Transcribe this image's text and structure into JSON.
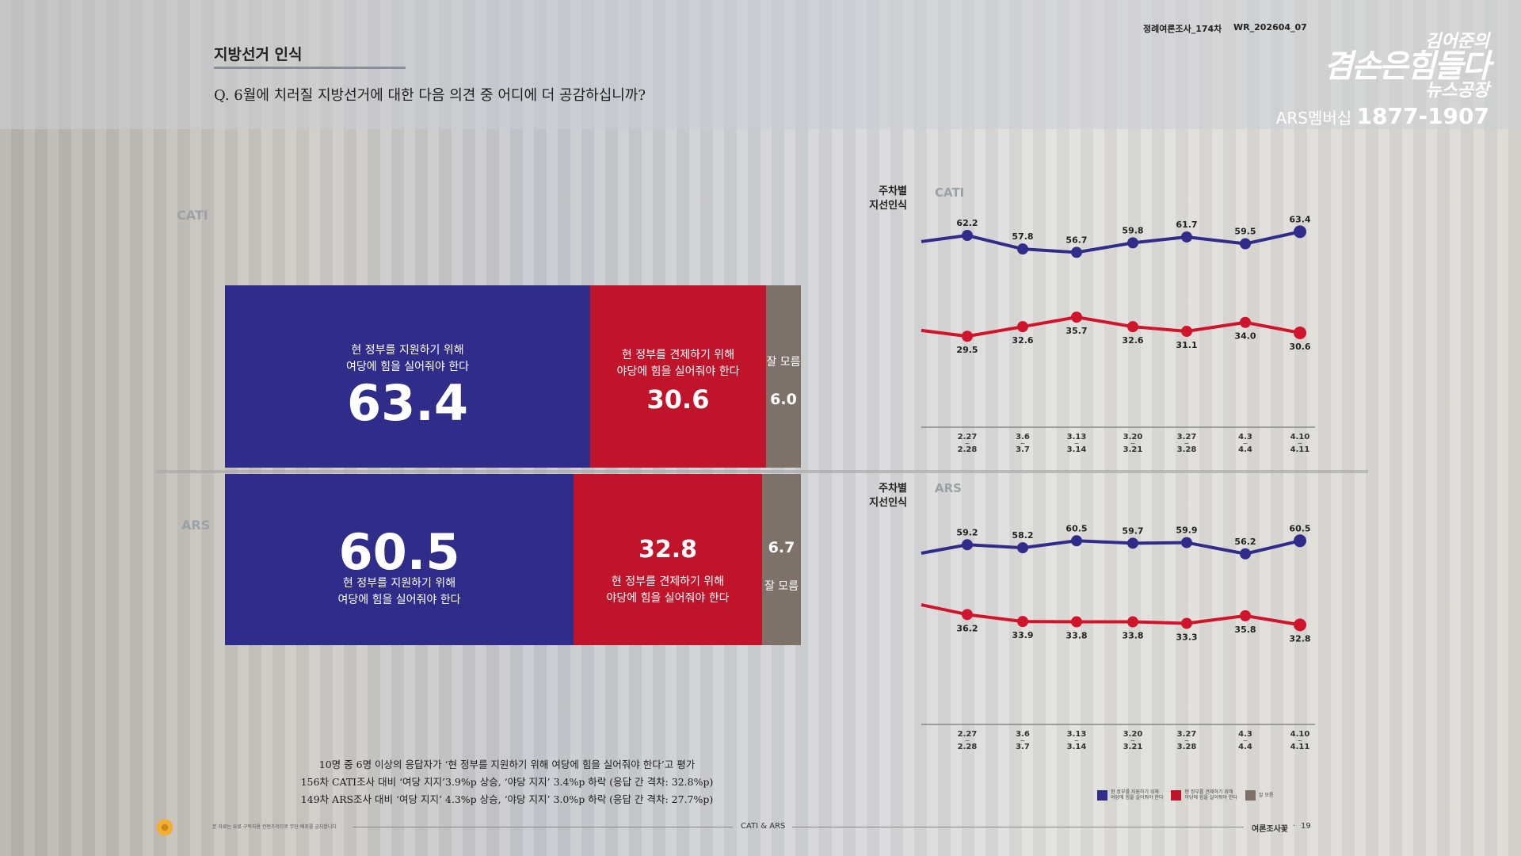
{
  "header": {
    "title": "지방선거 인식",
    "question": "Q. 6월에 치러질 지방선거에 대한 다음 의견 중 어디에 더 공감하십니까?",
    "survey_round": "정례여론조사_174차",
    "report_code": "WR_202604_07"
  },
  "logo": {
    "line1": "김어준의",
    "line2": "겸손은힘들다",
    "line3": "뉴스공장",
    "membership": "ARS멤버십",
    "phone": "1877-1907"
  },
  "stacked": {
    "cati": {
      "label": "CATI",
      "support": {
        "text1": "현 정부를 지원하기 위해",
        "text2": "여당에 힘을 실어줘야 한다",
        "value": "63.4"
      },
      "check": {
        "text1": "현 정부를 견제하기 위해",
        "text2": "야당에 힘을 실어줘야 한다",
        "value": "30.6"
      },
      "unknown": {
        "text": "잘 모름",
        "value": "6.0"
      }
    },
    "ars": {
      "label": "ARS",
      "support": {
        "text1": "현 정부를 지원하기 위해",
        "text2": "여당에 힘을 실어줘야 한다",
        "value": "60.5"
      },
      "check": {
        "text1": "현 정부를 견제하기 위해",
        "text2": "야당에 힘을 실어줘야 한다",
        "value": "32.8"
      },
      "unknown": {
        "text": "잘 모름",
        "value": "6.7"
      }
    }
  },
  "chart_data": [
    {
      "type": "line",
      "title": "주차별 지선인식",
      "panel": "CATI",
      "categories": [
        [
          "2.27",
          "2.28"
        ],
        [
          "3.6",
          "3.7"
        ],
        [
          "3.13",
          "3.14"
        ],
        [
          "3.20",
          "3.21"
        ],
        [
          "3.27",
          "3.28"
        ],
        [
          "4.3",
          "4.4"
        ],
        [
          "4.10",
          "4.11"
        ]
      ],
      "series": [
        {
          "name": "현 정부를 지원하기 위해 여당에 힘을 실어줘야 한다",
          "color": "#2f2c8a",
          "lead_in": 60.2,
          "values": [
            62.2,
            57.8,
            56.7,
            59.8,
            61.7,
            59.5,
            63.4
          ]
        },
        {
          "name": "현 정부를 견제하기 위해 야당에 힘을 실어줘야 한다",
          "color": "#d0142b",
          "lead_in": 31.4,
          "values": [
            29.5,
            32.6,
            35.7,
            32.6,
            31.1,
            34.0,
            30.6
          ]
        }
      ],
      "ylim": [
        0,
        100
      ]
    },
    {
      "type": "line",
      "title": "주차별 지선인식",
      "panel": "ARS",
      "categories": [
        [
          "2.27",
          "2.28"
        ],
        [
          "3.6",
          "3.7"
        ],
        [
          "3.13",
          "3.14"
        ],
        [
          "3.20",
          "3.21"
        ],
        [
          "3.27",
          "3.28"
        ],
        [
          "4.3",
          "4.4"
        ],
        [
          "4.10",
          "4.11"
        ]
      ],
      "series": [
        {
          "name": "현 정부를 지원하기 위해 여당에 힘을 실어줘야 한다",
          "color": "#2f2c8a",
          "lead_in": 56.4,
          "values": [
            59.2,
            58.2,
            60.5,
            59.7,
            59.9,
            56.2,
            60.5
          ]
        },
        {
          "name": "현 정부를 견제하기 위해 야당에 힘을 실어줘야 한다",
          "color": "#d0142b",
          "lead_in": 39.4,
          "values": [
            36.2,
            33.9,
            33.8,
            33.8,
            33.3,
            35.8,
            32.8
          ]
        }
      ],
      "ylim": [
        0,
        100
      ]
    }
  ],
  "chart_titles": {
    "line1": "주차별",
    "line2": "지선인식"
  },
  "legend": [
    {
      "text1": "현 정부를 지원하기 위해",
      "text2": "여당에 힘을 실어줘야 한다",
      "color": "#2f2c8a"
    },
    {
      "text1": "현 정부를 견제하기 위해",
      "text2": "야당에 힘을 실어줘야 한다",
      "color": "#c0142b"
    },
    {
      "text1": "잘 모름",
      "text2": "",
      "color": "#7d716a"
    }
  ],
  "summary": [
    "10명 중 6명 이상의 응답자가 ‘현 정부를 지원하기 위해 여당에 힘을 실어줘야 한다’고 평가",
    "156차 CATI조사 대비 ‘여당 지지’3.9%p 상승, ‘야당 지지’ 3.4%p 하락 (응답 간 격차: 32.8%p)",
    "149차 ARS조사 대비 ‘여당 지지’ 4.3%p 상승, ‘야당 지지’ 3.0%p 하락 (응답 간 격차: 27.7%p)"
  ],
  "footer": {
    "disclaimer": "본 자료는 유료 구독자용 컨텐츠이므로 무단 배포를 금지합니다",
    "center": "CATI & ARS",
    "brand": "여론조사꽃",
    "page": "19"
  }
}
